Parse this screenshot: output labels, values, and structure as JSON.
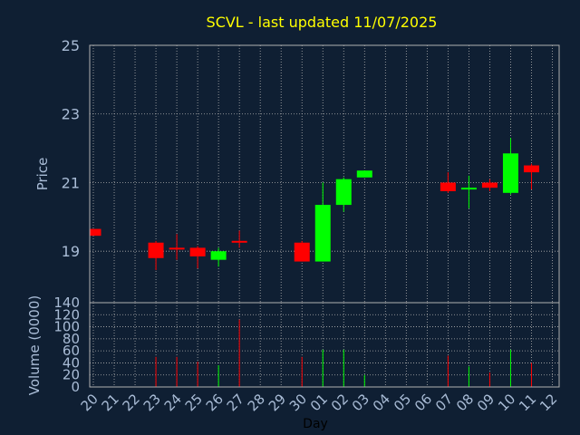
{
  "chart_data": [
    {
      "type": "candlestick",
      "title": "SCVL - last updated 11/07/2025",
      "ylabel": "Price",
      "ylim": [
        17.5,
        25
      ],
      "yticks": [
        "19",
        "21",
        "23",
        "25"
      ],
      "grid": true,
      "colors": {
        "up": "#00ff00",
        "down": "#ff0000",
        "title": "#ffff00",
        "axis_text": "#a9bcd6",
        "background": "#0f1f33",
        "grid": "#b0b0b0"
      },
      "candles": [
        {
          "x": "20",
          "open": 19.65,
          "close": 19.45,
          "high": 19.65,
          "low": 19.45
        },
        {
          "x": "23",
          "open": 19.25,
          "close": 18.8,
          "high": 19.3,
          "low": 18.45
        },
        {
          "x": "24",
          "open": 19.1,
          "close": 19.05,
          "high": 19.5,
          "low": 18.75
        },
        {
          "x": "25",
          "open": 19.1,
          "close": 18.85,
          "high": 19.15,
          "low": 18.5
        },
        {
          "x": "26",
          "open": 18.75,
          "close": 19.0,
          "high": 19.1,
          "low": 18.55
        },
        {
          "x": "27",
          "open": 19.3,
          "close": 19.25,
          "high": 19.6,
          "low": 19.1
        },
        {
          "x": "30",
          "open": 19.25,
          "close": 18.7,
          "high": 19.3,
          "low": 18.7
        },
        {
          "x": "01",
          "open": 18.7,
          "close": 20.35,
          "high": 21.0,
          "low": 18.7
        },
        {
          "x": "02",
          "open": 20.35,
          "close": 21.1,
          "high": 21.15,
          "low": 20.15
        },
        {
          "x": "03",
          "open": 21.15,
          "close": 21.35,
          "high": 21.35,
          "low": 21.15
        },
        {
          "x": "07",
          "open": 21.0,
          "close": 20.75,
          "high": 21.3,
          "low": 20.7
        },
        {
          "x": "08",
          "open": 20.8,
          "close": 20.85,
          "high": 21.2,
          "low": 20.25
        },
        {
          "x": "09",
          "open": 21.0,
          "close": 20.85,
          "high": 21.1,
          "low": 20.75
        },
        {
          "x": "10",
          "open": 20.7,
          "close": 21.85,
          "high": 22.3,
          "low": 20.65
        },
        {
          "x": "11",
          "open": 21.5,
          "close": 21.3,
          "high": 21.55,
          "low": 20.8
        }
      ]
    },
    {
      "type": "bar",
      "ylabel": "Volume (0000)",
      "xlabel": "Day",
      "ylim": [
        0,
        140
      ],
      "yticks": [
        "0",
        "20",
        "40",
        "60",
        "80",
        "100",
        "120",
        "140"
      ],
      "categories": [
        "20",
        "21",
        "22",
        "23",
        "24",
        "25",
        "26",
        "27",
        "28",
        "29",
        "30",
        "01",
        "02",
        "03",
        "04",
        "05",
        "06",
        "07",
        "08",
        "09",
        "10",
        "11",
        "12"
      ],
      "grid": true,
      "bars": [
        {
          "x": "23",
          "value": 50,
          "color": "#ff0000"
        },
        {
          "x": "24",
          "value": 50,
          "color": "#ff0000"
        },
        {
          "x": "25",
          "value": 42,
          "color": "#ff0000"
        },
        {
          "x": "26",
          "value": 36,
          "color": "#00ff00"
        },
        {
          "x": "27",
          "value": 112,
          "color": "#ff0000"
        },
        {
          "x": "30",
          "value": 50,
          "color": "#ff0000"
        },
        {
          "x": "01",
          "value": 62,
          "color": "#00ff00"
        },
        {
          "x": "02",
          "value": 62,
          "color": "#00ff00"
        },
        {
          "x": "03",
          "value": 20,
          "color": "#00ff00"
        },
        {
          "x": "07",
          "value": 52,
          "color": "#ff0000"
        },
        {
          "x": "08",
          "value": 34,
          "color": "#00ff00"
        },
        {
          "x": "09",
          "value": 24,
          "color": "#ff0000"
        },
        {
          "x": "10",
          "value": 62,
          "color": "#00ff00"
        },
        {
          "x": "11",
          "value": 40,
          "color": "#ff0000"
        }
      ]
    }
  ]
}
